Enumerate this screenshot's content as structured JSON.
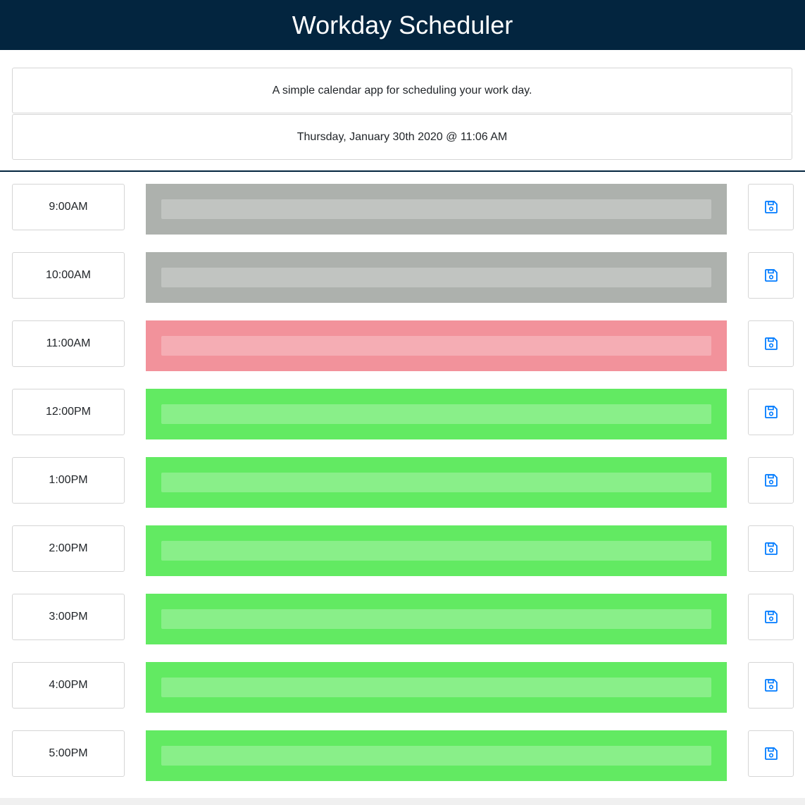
{
  "header": {
    "title": "Workday Scheduler",
    "description": "A simple calendar app for scheduling your work day.",
    "date": "Thursday, January 30th 2020 @ 11:06 AM"
  },
  "rows": [
    {
      "time": "9:00AM",
      "color": "#adb1ad"
    },
    {
      "time": "10:00AM",
      "color": "#adb1ad"
    },
    {
      "time": "11:00AM",
      "color": "#f2929b"
    },
    {
      "time": "12:00PM",
      "color": "#62ea62"
    },
    {
      "time": "1:00PM",
      "color": "#62ea62"
    },
    {
      "time": "2:00PM",
      "color": "#62ea62"
    },
    {
      "time": "3:00PM",
      "color": "#62ea62"
    },
    {
      "time": "4:00PM",
      "color": "#62ea62"
    },
    {
      "time": "5:00PM",
      "color": "#62ea62"
    }
  ]
}
